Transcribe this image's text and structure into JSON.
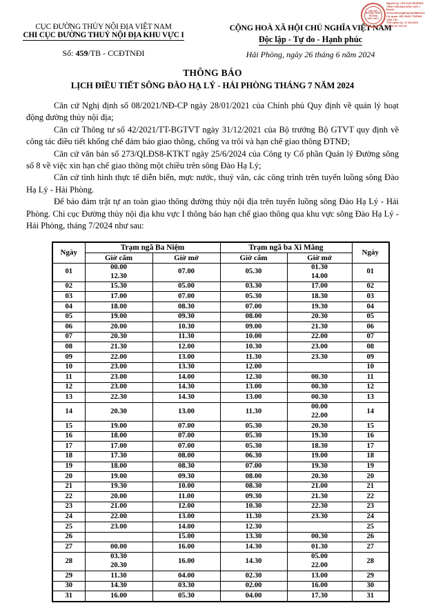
{
  "stamp": {
    "seal_lines": [
      "CHI CỤC",
      "ĐƯỜNG THỦY",
      "NỘI ĐỊA",
      "KHU VỰC I"
    ],
    "signature_lines": [
      "Người ký: CHI CỤC ĐƯỜNG",
      "THỦY NỘI ĐỊA KHU VỰC I",
      "Email:",
      "chicucduongthuynoidiakhuvuci",
      "Cơ quan: BỘ GIAO THÔNG",
      "VẬN TẢI",
      "Thời gian ký: 27.06.2024",
      "10:43:22 +07:00"
    ]
  },
  "header": {
    "left": {
      "org1": "CỤC ĐƯỜNG THỦY NỘI ĐỊA VIỆT NAM",
      "org2": "CHI CỤC ĐƯỜNG THUỶ NỘI ĐỊA KHU VỰC I",
      "so_prefix": "Số: ",
      "so_number": "459",
      "so_suffix": "/TB - CCĐTNĐI"
    },
    "right": {
      "nation1": "CỘNG HOÀ XÃ HỘI CHỦ NGHĨA VIỆT NAM",
      "nation2": "Độc lập - Tự do - Hạnh phúc",
      "date": "Hải Phòng, ngày 26 tháng 6 năm 2024"
    }
  },
  "title": {
    "line1": "THÔNG BÁO",
    "line2": "LỊCH ĐIỀU TIẾT SÔNG ĐÀO HẠ LÝ - HẢI PHÒNG THÁNG 7 NĂM 2024"
  },
  "paragraphs": [
    "Căn cứ Nghị định số 08/2021/NĐ-CP ngày 28/01/2021 của Chính phủ Quy định về quản lý hoạt động đường thủy nội địa;",
    "Căn cứ Thông tư số 42/2021/TT-BGTVT ngày 31/12/2021 của Bộ trưởng Bộ GTVT quy định về công tác điều tiết khống chế đảm bảo giao thông, chống va trôi và hạn chế giao thông ĐTNĐ;",
    "Căn cứ văn bản số 273/QLĐS8-KTKT ngày 25/6/2024 của Công ty Cổ phần Quản lý Đường sông số 8 về việc xin hạn chế giao thông một chiều trên sông Đào Hạ Lý;",
    "Căn cứ tình hình thực tế diễn biến, mực nước, thuỷ văn, các công trình trên tuyến luồng sông Đào Hạ Lý - Hải Phòng.",
    "Để bảo đảm trật tự an toàn giao thông đường thủy nội địa trên tuyến luồng sông Đào Hạ Lý - Hải Phòng. Chi cục Đường thủy nội địa khu vực I thông báo hạn chế giao thông qua khu vực sông Đào Hạ Lý - Hải Phòng, tháng 7/2024 như sau:",
    ""
  ],
  "table": {
    "col_day": "Ngày",
    "station1": "Trạm ngã Ba Niệm",
    "station2": "Trạm ngã ba Xi Măng",
    "sub_closed": "Giờ cấm",
    "sub_open": "Giờ mở",
    "rows": [
      {
        "day": "01",
        "bn_closed": [
          "00.00",
          "12.30"
        ],
        "bn_open": [
          "07.00"
        ],
        "xm_closed": [
          "05.30"
        ],
        "xm_open": [
          "01.30",
          "14.00"
        ]
      },
      {
        "day": "02",
        "bn_closed": [
          "15.30"
        ],
        "bn_open": [
          "05.00"
        ],
        "xm_closed": [
          "03.30"
        ],
        "xm_open": [
          "17.00"
        ]
      },
      {
        "day": "03",
        "bn_closed": [
          "17.00"
        ],
        "bn_open": [
          "07.00"
        ],
        "xm_closed": [
          "05.30"
        ],
        "xm_open": [
          "18.30"
        ]
      },
      {
        "day": "04",
        "bn_closed": [
          "18.00"
        ],
        "bn_open": [
          "08.30"
        ],
        "xm_closed": [
          "07.00"
        ],
        "xm_open": [
          "19.30"
        ]
      },
      {
        "day": "05",
        "bn_closed": [
          "19.00"
        ],
        "bn_open": [
          "09.30"
        ],
        "xm_closed": [
          "08.00"
        ],
        "xm_open": [
          "20.30"
        ]
      },
      {
        "day": "06",
        "bn_closed": [
          "20.00"
        ],
        "bn_open": [
          "10.30"
        ],
        "xm_closed": [
          "09.00"
        ],
        "xm_open": [
          "21.30"
        ]
      },
      {
        "day": "07",
        "bn_closed": [
          "20.30"
        ],
        "bn_open": [
          "11.30"
        ],
        "xm_closed": [
          "10.00"
        ],
        "xm_open": [
          "22.00"
        ]
      },
      {
        "day": "08",
        "bn_closed": [
          "21.30"
        ],
        "bn_open": [
          "12.00"
        ],
        "xm_closed": [
          "10.30"
        ],
        "xm_open": [
          "23.00"
        ]
      },
      {
        "day": "09",
        "bn_closed": [
          "22.00"
        ],
        "bn_open": [
          "13.00"
        ],
        "xm_closed": [
          "11.30"
        ],
        "xm_open": [
          "23.30"
        ]
      },
      {
        "day": "10",
        "bn_closed": [
          "23.00"
        ],
        "bn_open": [
          "13.30"
        ],
        "xm_closed": [
          "12.00"
        ],
        "xm_open": []
      },
      {
        "day": "11",
        "bn_closed": [
          "23.00"
        ],
        "bn_open": [
          "14.00"
        ],
        "xm_closed": [
          "12.30"
        ],
        "xm_open": [
          "00.30"
        ]
      },
      {
        "day": "12",
        "bn_closed": [
          "23.00"
        ],
        "bn_open": [
          "14.30"
        ],
        "xm_closed": [
          "13.00"
        ],
        "xm_open": [
          "00.30"
        ]
      },
      {
        "day": "13",
        "bn_closed": [
          "22.30"
        ],
        "bn_open": [
          "14.30"
        ],
        "xm_closed": [
          "13.00"
        ],
        "xm_open": [
          "00.30"
        ]
      },
      {
        "day": "14",
        "bn_closed": [
          "20.30"
        ],
        "bn_open": [
          "13.00"
        ],
        "xm_closed": [
          "11.30"
        ],
        "xm_open": [
          "00.00",
          "22.00"
        ]
      },
      {
        "day": "15",
        "bn_closed": [
          "19.00"
        ],
        "bn_open": [
          "07.00"
        ],
        "xm_closed": [
          "05.30"
        ],
        "xm_open": [
          "20.30"
        ]
      },
      {
        "day": "16",
        "bn_closed": [
          "18.00"
        ],
        "bn_open": [
          "07.00"
        ],
        "xm_closed": [
          "05.30"
        ],
        "xm_open": [
          "19.30"
        ]
      },
      {
        "day": "17",
        "bn_closed": [
          "17.00"
        ],
        "bn_open": [
          "07.00"
        ],
        "xm_closed": [
          "05.30"
        ],
        "xm_open": [
          "18.30"
        ]
      },
      {
        "day": "18",
        "bn_closed": [
          "17.30"
        ],
        "bn_open": [
          "08.00"
        ],
        "xm_closed": [
          "06.30"
        ],
        "xm_open": [
          "19.00"
        ]
      },
      {
        "day": "19",
        "bn_closed": [
          "18.00"
        ],
        "bn_open": [
          "08.30"
        ],
        "xm_closed": [
          "07.00"
        ],
        "xm_open": [
          "19.30"
        ]
      },
      {
        "day": "20",
        "bn_closed": [
          "19.00"
        ],
        "bn_open": [
          "09.30"
        ],
        "xm_closed": [
          "08.00"
        ],
        "xm_open": [
          "20.30"
        ]
      },
      {
        "day": "21",
        "bn_closed": [
          "19.30"
        ],
        "bn_open": [
          "10.00"
        ],
        "xm_closed": [
          "08.30"
        ],
        "xm_open": [
          "21.00"
        ]
      },
      {
        "day": "22",
        "bn_closed": [
          "20.00"
        ],
        "bn_open": [
          "11.00"
        ],
        "xm_closed": [
          "09.30"
        ],
        "xm_open": [
          "21.30"
        ]
      },
      {
        "day": "23",
        "bn_closed": [
          "21.00"
        ],
        "bn_open": [
          "12.00"
        ],
        "xm_closed": [
          "10.30"
        ],
        "xm_open": [
          "22.30"
        ]
      },
      {
        "day": "24",
        "bn_closed": [
          "22.00"
        ],
        "bn_open": [
          "13.00"
        ],
        "xm_closed": [
          "11.30"
        ],
        "xm_open": [
          "23.30"
        ]
      },
      {
        "day": "25",
        "bn_closed": [
          "23.00"
        ],
        "bn_open": [
          "14.00"
        ],
        "xm_closed": [
          "12.30"
        ],
        "xm_open": []
      },
      {
        "day": "26",
        "bn_closed": [],
        "bn_open": [
          "15.00"
        ],
        "xm_closed": [
          "13.30"
        ],
        "xm_open": [
          "00.30"
        ]
      },
      {
        "day": "27",
        "bn_closed": [
          "00.00"
        ],
        "bn_open": [
          "16.00"
        ],
        "xm_closed": [
          "14.30"
        ],
        "xm_open": [
          "01.30"
        ]
      },
      {
        "day": "28",
        "bn_closed": [
          "03.30",
          "20.30"
        ],
        "bn_open": [
          "16.00"
        ],
        "xm_closed": [
          "14.30"
        ],
        "xm_open": [
          "05.00",
          "22.00"
        ]
      },
      {
        "day": "29",
        "bn_closed": [
          "11.30"
        ],
        "bn_open": [
          "04.00"
        ],
        "xm_closed": [
          "02.30"
        ],
        "xm_open": [
          "13.00"
        ]
      },
      {
        "day": "30",
        "bn_closed": [
          "14.30"
        ],
        "bn_open": [
          "03.30"
        ],
        "xm_closed": [
          "02.00"
        ],
        "xm_open": [
          "16.00"
        ]
      },
      {
        "day": "31",
        "bn_closed": [
          "16.00"
        ],
        "bn_open": [
          "05.30"
        ],
        "xm_closed": [
          "04.00"
        ],
        "xm_open": [
          "17.30"
        ]
      }
    ]
  }
}
